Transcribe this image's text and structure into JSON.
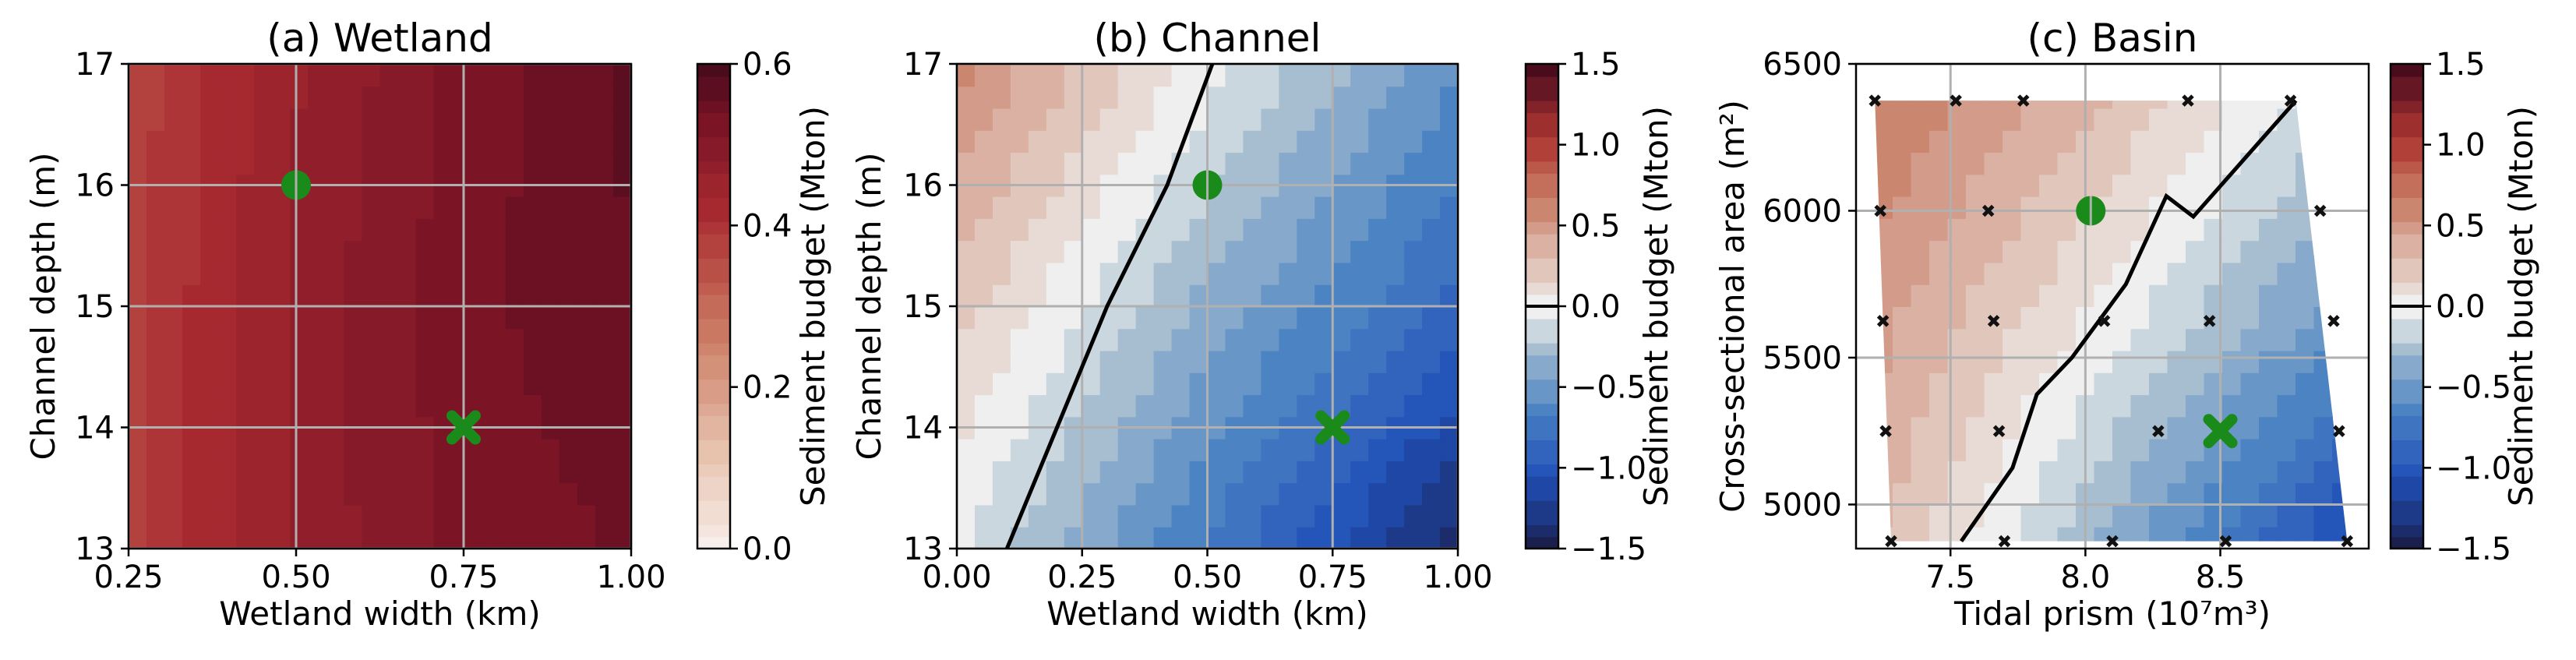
{
  "chart_data": [
    {
      "type": "heatmap",
      "title": "(a) Wetland",
      "xlabel": "Wetland width (km)",
      "ylabel": "Channel depth (m)",
      "xlim": [
        0.25,
        1.0
      ],
      "ylim": [
        13,
        17
      ],
      "xticks": [
        "0.25",
        "0.50",
        "0.75",
        "1.00"
      ],
      "yticks": [
        "13",
        "14",
        "15",
        "16",
        "17"
      ],
      "grid": true,
      "colorbar": {
        "label": "Sediment budget (Mton)",
        "range": [
          0.0,
          0.6
        ],
        "ticks": [
          "0.0",
          "0.2",
          "0.4",
          "0.6"
        ],
        "colormap": "white-to-dark-red"
      },
      "markers": [
        {
          "shape": "circle",
          "x": 0.5,
          "y": 16,
          "color": "#1a8a1a"
        },
        {
          "shape": "cross",
          "x": 0.75,
          "y": 14,
          "color": "#1a8a1a"
        }
      ],
      "field": {
        "x": [
          0.25,
          0.5,
          0.75,
          1.0
        ],
        "y": [
          13,
          15,
          17
        ],
        "z": [
          [
            0.38,
            0.47,
            0.52,
            0.54
          ],
          [
            0.38,
            0.47,
            0.53,
            0.56
          ],
          [
            0.37,
            0.46,
            0.52,
            0.57
          ]
        ]
      }
    },
    {
      "type": "heatmap",
      "title": "(b) Channel",
      "xlabel": "Wetland width (km)",
      "ylabel": "Channel depth (m)",
      "xlim": [
        0.0,
        1.0
      ],
      "ylim": [
        13,
        17
      ],
      "xticks": [
        "0.00",
        "0.25",
        "0.50",
        "0.75",
        "1.00"
      ],
      "yticks": [
        "13",
        "14",
        "15",
        "16",
        "17"
      ],
      "grid": true,
      "colorbar": {
        "label": "Sediment budget (Mton)",
        "range": [
          -1.5,
          1.5
        ],
        "ticks": [
          "−1.5",
          "−1.0",
          "−0.5",
          "0.0",
          "0.5",
          "1.0",
          "1.5"
        ],
        "colormap": "blue-white-red diverging"
      },
      "zero_contour": [
        [
          0.1,
          13
        ],
        [
          0.2,
          14
        ],
        [
          0.3,
          15
        ],
        [
          0.42,
          16
        ],
        [
          0.51,
          17
        ]
      ],
      "markers": [
        {
          "shape": "circle",
          "x": 0.5,
          "y": 16,
          "color": "#1a8a1a"
        },
        {
          "shape": "cross",
          "x": 0.75,
          "y": 14,
          "color": "#1a8a1a"
        }
      ],
      "field": {
        "x": [
          0.0,
          0.5,
          1.0
        ],
        "y": [
          13,
          15,
          17
        ],
        "z": [
          [
            -0.05,
            -0.7,
            -1.4
          ],
          [
            0.25,
            -0.35,
            -0.85
          ],
          [
            0.6,
            0.0,
            -0.55
          ]
        ]
      }
    },
    {
      "type": "heatmap",
      "title": "(c) Basin",
      "xlabel": "Tidal prism (10⁷m³)",
      "ylabel": "Cross-sectional area (m²)",
      "xlim": [
        7.15,
        9.05
      ],
      "ylim": [
        4850,
        6500
      ],
      "xticks": [
        "7.5",
        "8.0",
        "8.5"
      ],
      "yticks": [
        "5000",
        "5500",
        "6000",
        "6500"
      ],
      "grid": true,
      "colorbar": {
        "label": "Sediment budget (Mton)",
        "range": [
          -1.5,
          1.5
        ],
        "ticks": [
          "−1.5",
          "−1.0",
          "−0.5",
          "0.0",
          "0.5",
          "1.0",
          "1.5"
        ],
        "colormap": "blue-white-red diverging"
      },
      "domain_polygon": [
        [
          7.22,
          6375
        ],
        [
          8.78,
          6375
        ],
        [
          8.97,
          4875
        ],
        [
          7.28,
          4875
        ]
      ],
      "zero_contour": [
        [
          7.54,
          4875
        ],
        [
          7.73,
          5125
        ],
        [
          7.82,
          5375
        ],
        [
          7.95,
          5500
        ],
        [
          8.05,
          5625
        ],
        [
          8.15,
          5750
        ],
        [
          8.3,
          6050
        ],
        [
          8.4,
          5980
        ],
        [
          8.78,
          6375
        ]
      ],
      "sample_points": [
        [
          7.22,
          6375
        ],
        [
          7.52,
          6375
        ],
        [
          7.77,
          6375
        ],
        [
          8.38,
          6375
        ],
        [
          8.76,
          6375
        ],
        [
          7.24,
          6000
        ],
        [
          7.64,
          6000
        ],
        [
          8.87,
          6000
        ],
        [
          7.25,
          5625
        ],
        [
          7.66,
          5625
        ],
        [
          8.07,
          5625
        ],
        [
          8.46,
          5625
        ],
        [
          8.92,
          5625
        ],
        [
          7.26,
          5250
        ],
        [
          7.68,
          5250
        ],
        [
          8.27,
          5250
        ],
        [
          8.94,
          5250
        ],
        [
          7.28,
          4875
        ],
        [
          7.7,
          4875
        ],
        [
          8.1,
          4875
        ],
        [
          8.52,
          4875
        ],
        [
          8.97,
          4875
        ]
      ],
      "markers": [
        {
          "shape": "circle",
          "x": 8.02,
          "y": 6000,
          "color": "#1a8a1a"
        },
        {
          "shape": "cross",
          "x": 8.5,
          "y": 5250,
          "color": "#1a8a1a"
        }
      ],
      "field": {
        "x": [
          7.2,
          8.1,
          9.0
        ],
        "y": [
          4875,
          5625,
          6375
        ],
        "z": [
          [
            0.35,
            -0.35,
            -1.1
          ],
          [
            0.5,
            0.0,
            -0.55
          ],
          [
            0.7,
            0.3,
            -0.2
          ]
        ]
      }
    }
  ]
}
